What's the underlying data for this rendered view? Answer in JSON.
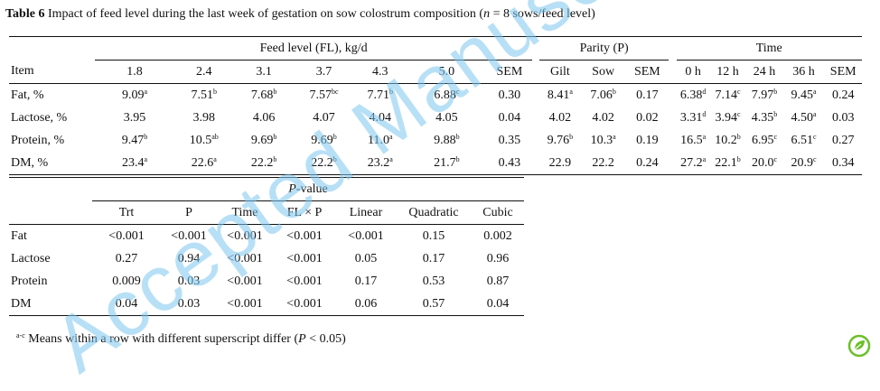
{
  "caption": {
    "label": "Table 6",
    "text": "Impact of feed level during the last week of gestation on sow colostrum composition (",
    "n_symbol": "n",
    "n_rest": " = 8 sows/feed level)"
  },
  "table1": {
    "item_label": "Item",
    "group_fl": "Feed level (FL), kg/d",
    "group_parity": "Parity (P)",
    "group_time": "Time",
    "fl_levels": [
      "1.8",
      "2.4",
      "3.1",
      "3.7",
      "4.3",
      "5.0"
    ],
    "sem": "SEM",
    "parity": [
      "Gilt",
      "Sow"
    ],
    "times": [
      "0 h",
      "12 h",
      "24 h",
      "36 h"
    ],
    "rows": [
      {
        "item": "Fat, %",
        "fl": [
          [
            "9.09",
            "a"
          ],
          [
            "7.51",
            "b"
          ],
          [
            "7.68",
            "b"
          ],
          [
            "7.57",
            "bc"
          ],
          [
            "7.71",
            "b"
          ],
          [
            "6.88",
            "c"
          ]
        ],
        "fl_sem": "0.30",
        "parity": [
          [
            "8.41",
            "a"
          ],
          [
            "7.06",
            "b"
          ]
        ],
        "p_sem": "0.17",
        "time": [
          [
            "6.38",
            "d"
          ],
          [
            "7.14",
            "c"
          ],
          [
            "7.97",
            "b"
          ],
          [
            "9.45",
            "a"
          ]
        ],
        "t_sem": "0.24"
      },
      {
        "item": "Lactose, %",
        "fl": [
          [
            "3.95",
            ""
          ],
          [
            "3.98",
            ""
          ],
          [
            "4.06",
            ""
          ],
          [
            "4.07",
            ""
          ],
          [
            "4.04",
            ""
          ],
          [
            "4.05",
            ""
          ]
        ],
        "fl_sem": "0.04",
        "parity": [
          [
            "4.02",
            ""
          ],
          [
            "4.02",
            ""
          ]
        ],
        "p_sem": "0.02",
        "time": [
          [
            "3.31",
            "d"
          ],
          [
            "3.94",
            "c"
          ],
          [
            "4.35",
            "b"
          ],
          [
            "4.50",
            "a"
          ]
        ],
        "t_sem": "0.03"
      },
      {
        "item": "Protein, %",
        "fl": [
          [
            "9.47",
            "b"
          ],
          [
            "10.5",
            "ab"
          ],
          [
            "9.69",
            "b"
          ],
          [
            "9.69",
            "b"
          ],
          [
            "11.0",
            "a"
          ],
          [
            "9.88",
            "b"
          ]
        ],
        "fl_sem": "0.35",
        "parity": [
          [
            "9.76",
            "b"
          ],
          [
            "10.3",
            "a"
          ]
        ],
        "p_sem": "0.19",
        "time": [
          [
            "16.5",
            "a"
          ],
          [
            "10.2",
            "b"
          ],
          [
            "6.95",
            "c"
          ],
          [
            "6.51",
            "c"
          ]
        ],
        "t_sem": "0.27"
      },
      {
        "item": "DM, %",
        "fl": [
          [
            "23.4",
            "a"
          ],
          [
            "22.6",
            "a"
          ],
          [
            "22.2",
            "b"
          ],
          [
            "22.2",
            "b"
          ],
          [
            "23.2",
            "a"
          ],
          [
            "21.7",
            "b"
          ]
        ],
        "fl_sem": "0.43",
        "parity": [
          [
            "22.9",
            ""
          ],
          [
            "22.2",
            ""
          ]
        ],
        "p_sem": "0.24",
        "time": [
          [
            "27.2",
            "a"
          ],
          [
            "22.1",
            "b"
          ],
          [
            "20.0",
            "c"
          ],
          [
            "20.9",
            "c"
          ]
        ],
        "t_sem": "0.34"
      }
    ]
  },
  "table2": {
    "pvalue_p": "P",
    "pvalue_rest": "-value",
    "headers": [
      "Trt",
      "P",
      "Time",
      "FL × P",
      "Linear",
      "Quadratic",
      "Cubic"
    ],
    "rows": [
      {
        "item": "Fat",
        "values": [
          "<0.001",
          "<0.001",
          "<0.001",
          "<0.001",
          "<0.001",
          "0.15",
          "0.002"
        ]
      },
      {
        "item": "Lactose",
        "values": [
          "0.27",
          "0.94",
          "<0.001",
          "<0.001",
          "0.05",
          "0.17",
          "0.96"
        ]
      },
      {
        "item": "Protein",
        "values": [
          "0.009",
          "0.03",
          "<0.001",
          "<0.001",
          "0.17",
          "0.53",
          "0.87"
        ]
      },
      {
        "item": "DM",
        "values": [
          "0.04",
          "0.03",
          "<0.001",
          "<0.001",
          "0.06",
          "0.57",
          "0.04"
        ]
      }
    ]
  },
  "footnote": {
    "sup": "a-c",
    "text": " Means within a row with different superscript differ (",
    "p_symbol": "P",
    "rest": " < 0.05)"
  },
  "watermark": "Accepted Manuscript",
  "colors": {
    "watermark": "#7ec8f0",
    "logo": "#6bbf2a"
  },
  "logo_icon": "leaf-logo-icon"
}
